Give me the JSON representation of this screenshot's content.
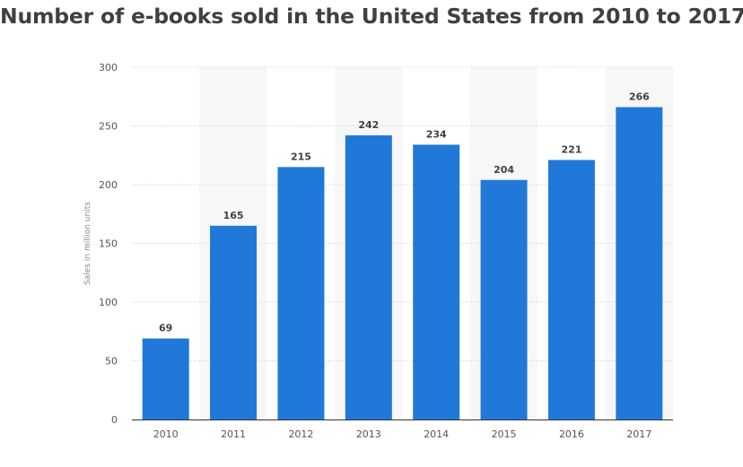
{
  "chart_data": {
    "type": "bar",
    "title": "Number of e-books sold in the United States from 2010 to 2017",
    "categories": [
      "2010",
      "2011",
      "2012",
      "2013",
      "2014",
      "2015",
      "2016",
      "2017"
    ],
    "values": [
      69,
      165,
      215,
      242,
      234,
      204,
      221,
      266
    ],
    "xlabel": "",
    "ylabel": "Sales in million units",
    "ylim": [
      0,
      300
    ],
    "yticks": [
      "0",
      "50",
      "100",
      "150",
      "200",
      "250",
      "300"
    ],
    "grid": true,
    "alternating_column_bands": true,
    "data_labels": true,
    "bar_color": "#2079d8",
    "band_color": "#f7f7f7",
    "text_color": "#404040"
  }
}
